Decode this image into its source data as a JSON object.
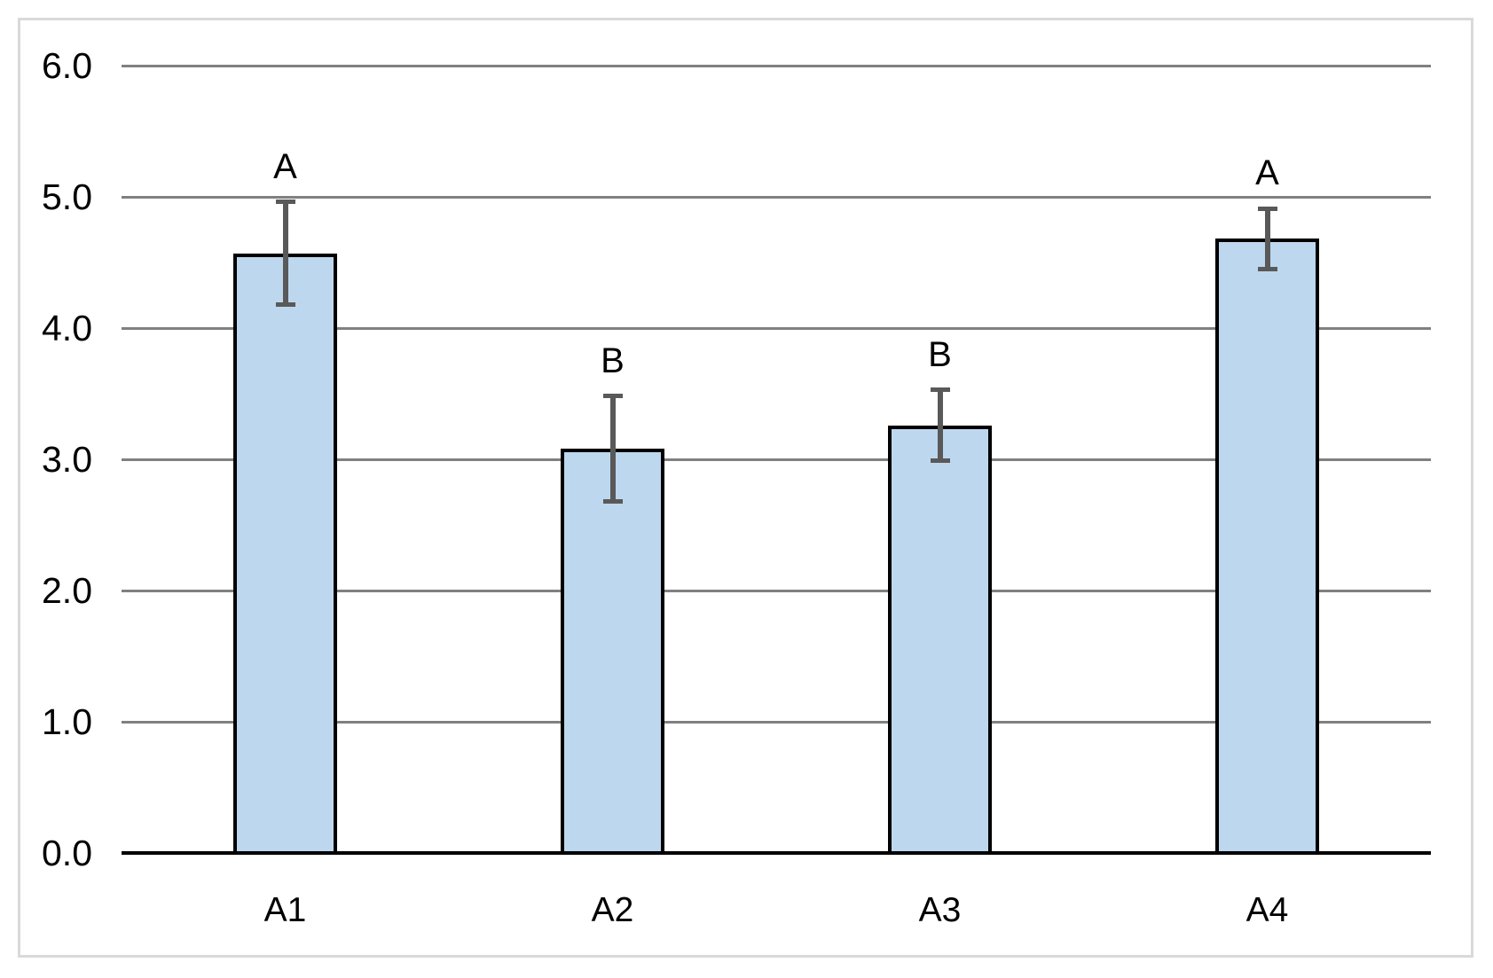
{
  "chart_data": {
    "type": "bar",
    "title": "",
    "xlabel": "",
    "ylabel": "",
    "categories": [
      "A1",
      "A2",
      "A3",
      "A4"
    ],
    "values": [
      4.57,
      3.08,
      3.26,
      4.68
    ],
    "error_bars": [
      0.39,
      0.4,
      0.27,
      0.23
    ],
    "significance_letters": [
      "A",
      "B",
      "B",
      "A"
    ],
    "ylim": [
      0,
      6
    ],
    "ytick_interval": 1.0,
    "ytick_labels": [
      "0.0",
      "1.0",
      "2.0",
      "3.0",
      "4.0",
      "5.0",
      "6.0"
    ],
    "grid": "horizontal-gridlines-on",
    "legend": "none",
    "colors": {
      "bar_fill": "#BDD7EE",
      "bar_border": "#000000",
      "error_bar": "#595959",
      "gridline": "#808080",
      "axis_line": "#000000",
      "chart_border": "#D9D9D9",
      "background": "#FFFFFF",
      "text": "#000000"
    }
  }
}
